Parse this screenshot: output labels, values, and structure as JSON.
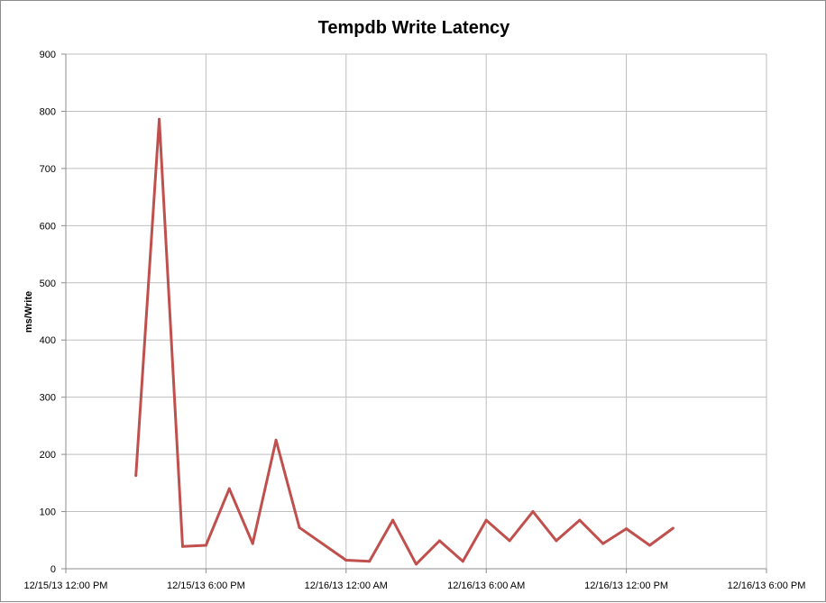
{
  "chart_data": {
    "type": "line",
    "title": "Tempdb Write Latency",
    "xlabel": "",
    "ylabel": "ms/Write",
    "ylim": [
      0,
      900
    ],
    "y_ticks": [
      0,
      100,
      200,
      300,
      400,
      500,
      600,
      700,
      800,
      900
    ],
    "x_ticks": [
      "12/15/13 12:00 PM",
      "12/15/13 6:00 PM",
      "12/16/13 12:00 AM",
      "12/16/13 6:00 AM",
      "12/16/13 12:00 PM",
      "12/16/13 6:00 PM"
    ],
    "xlim": [
      "12/15/13 12:00 PM",
      "12/16/13 6:00 PM"
    ],
    "grid": true,
    "legend": "none",
    "series": [
      {
        "color": "#c0504d",
        "x": [
          "12/15/13 3:00 PM",
          "12/15/13 4:00 PM",
          "12/15/13 5:00 PM",
          "12/15/13 6:00 PM",
          "12/15/13 7:00 PM",
          "12/15/13 8:00 PM",
          "12/15/13 9:00 PM",
          "12/15/13 10:00 PM",
          "12/16/13 12:00 AM",
          "12/16/13 1:00 AM",
          "12/16/13 2:00 AM",
          "12/16/13 3:00 AM",
          "12/16/13 4:00 AM",
          "12/16/13 5:00 AM",
          "12/16/13 6:00 AM",
          "12/16/13 7:00 AM",
          "12/16/13 8:00 AM",
          "12/16/13 9:00 AM",
          "12/16/13 10:00 AM",
          "12/16/13 11:00 AM",
          "12/16/13 12:00 PM",
          "12/16/13 1:00 PM",
          "12/16/13 2:00 PM"
        ],
        "values": [
          163,
          786,
          39,
          41,
          140,
          44,
          225,
          72,
          15,
          13,
          85,
          8,
          49,
          13,
          85,
          49,
          100,
          49,
          85,
          44,
          70,
          41,
          71
        ]
      }
    ]
  }
}
